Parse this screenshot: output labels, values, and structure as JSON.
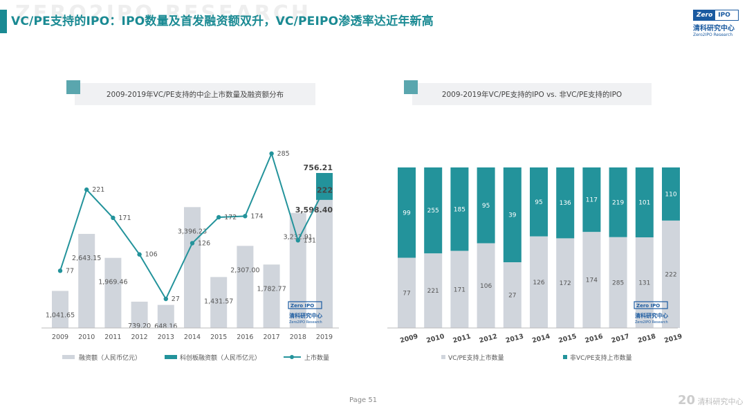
{
  "page": {
    "title": "VC/PE支持的IPO：IPO数量及首发融资额双升，VC/PEIPO渗透率达近年新高",
    "watermark": "ZERO2IPO RESEARCH",
    "page_number": "Page 51",
    "footer_logo": "清科研究中心",
    "footer_logo_mark": "20"
  },
  "logo": {
    "zero": "Zero",
    "ipo": "IPO",
    "cn": "清科研究中心",
    "en": "Zero2IPO Research"
  },
  "colors": {
    "teal": "#23939b",
    "gray": "#d0d5dc",
    "title": "#1a8a93"
  },
  "chart_data": [
    {
      "type": "bar+line",
      "title": "2009-2019年VC/PE支持的中企上市数量及融资额分布",
      "categories": [
        "2009",
        "2010",
        "2011",
        "2012",
        "2013",
        "2014",
        "2015",
        "2016",
        "2017",
        "2018",
        "2019"
      ],
      "series": [
        {
          "name": "融资额（人民币亿元）",
          "type": "bar",
          "color": "#d0d5dc",
          "values": [
            1041.65,
            2643.15,
            1969.46,
            739.2,
            648.16,
            3396.23,
            1431.57,
            2307.0,
            1782.77,
            3232.91,
            3598.4
          ],
          "labels": [
            "1,041.65",
            "2,643.15",
            "1,969.46",
            "739.20",
            "648.16",
            "3,396.23",
            "1,431.57",
            "2,307.00",
            "1,782.77",
            "3,232.91",
            "3,598.40"
          ]
        },
        {
          "name": "科创板融资额（人民币亿元）",
          "type": "bar-stack",
          "color": "#23939b",
          "values": [
            0,
            0,
            0,
            0,
            0,
            0,
            0,
            0,
            0,
            0,
            756.21
          ],
          "labels": [
            "",
            "",
            "",
            "",
            "",
            "",
            "",
            "",
            "",
            "",
            "756.21"
          ]
        },
        {
          "name": "上市数量",
          "type": "line",
          "color": "#23939b",
          "values": [
            77,
            221,
            171,
            106,
            27,
            126,
            172,
            174,
            285,
            131,
            222
          ],
          "labels": [
            "77",
            "221",
            "171",
            "106",
            "27",
            "126",
            "172",
            "174",
            "285",
            "131",
            "222"
          ]
        }
      ],
      "legend_position": "bottom"
    },
    {
      "type": "stacked-bar-100",
      "title": "2009-2019年VC/PE支持的IPO vs. 非VC/PE支持的IPO",
      "categories": [
        "2009",
        "2010",
        "2011",
        "2012",
        "2013",
        "2014",
        "2015",
        "2016",
        "2017",
        "2018",
        "2019"
      ],
      "series": [
        {
          "name": "VC/PE支持上市数量",
          "color": "#d0d5dc",
          "values": [
            77,
            221,
            171,
            106,
            27,
            126,
            172,
            174,
            285,
            131,
            222
          ]
        },
        {
          "name": "非VC/PE支持上市数量",
          "color": "#23939b",
          "values": [
            99,
            255,
            185,
            95,
            39,
            95,
            136,
            117,
            219,
            101,
            110
          ]
        }
      ],
      "legend_position": "bottom"
    }
  ]
}
